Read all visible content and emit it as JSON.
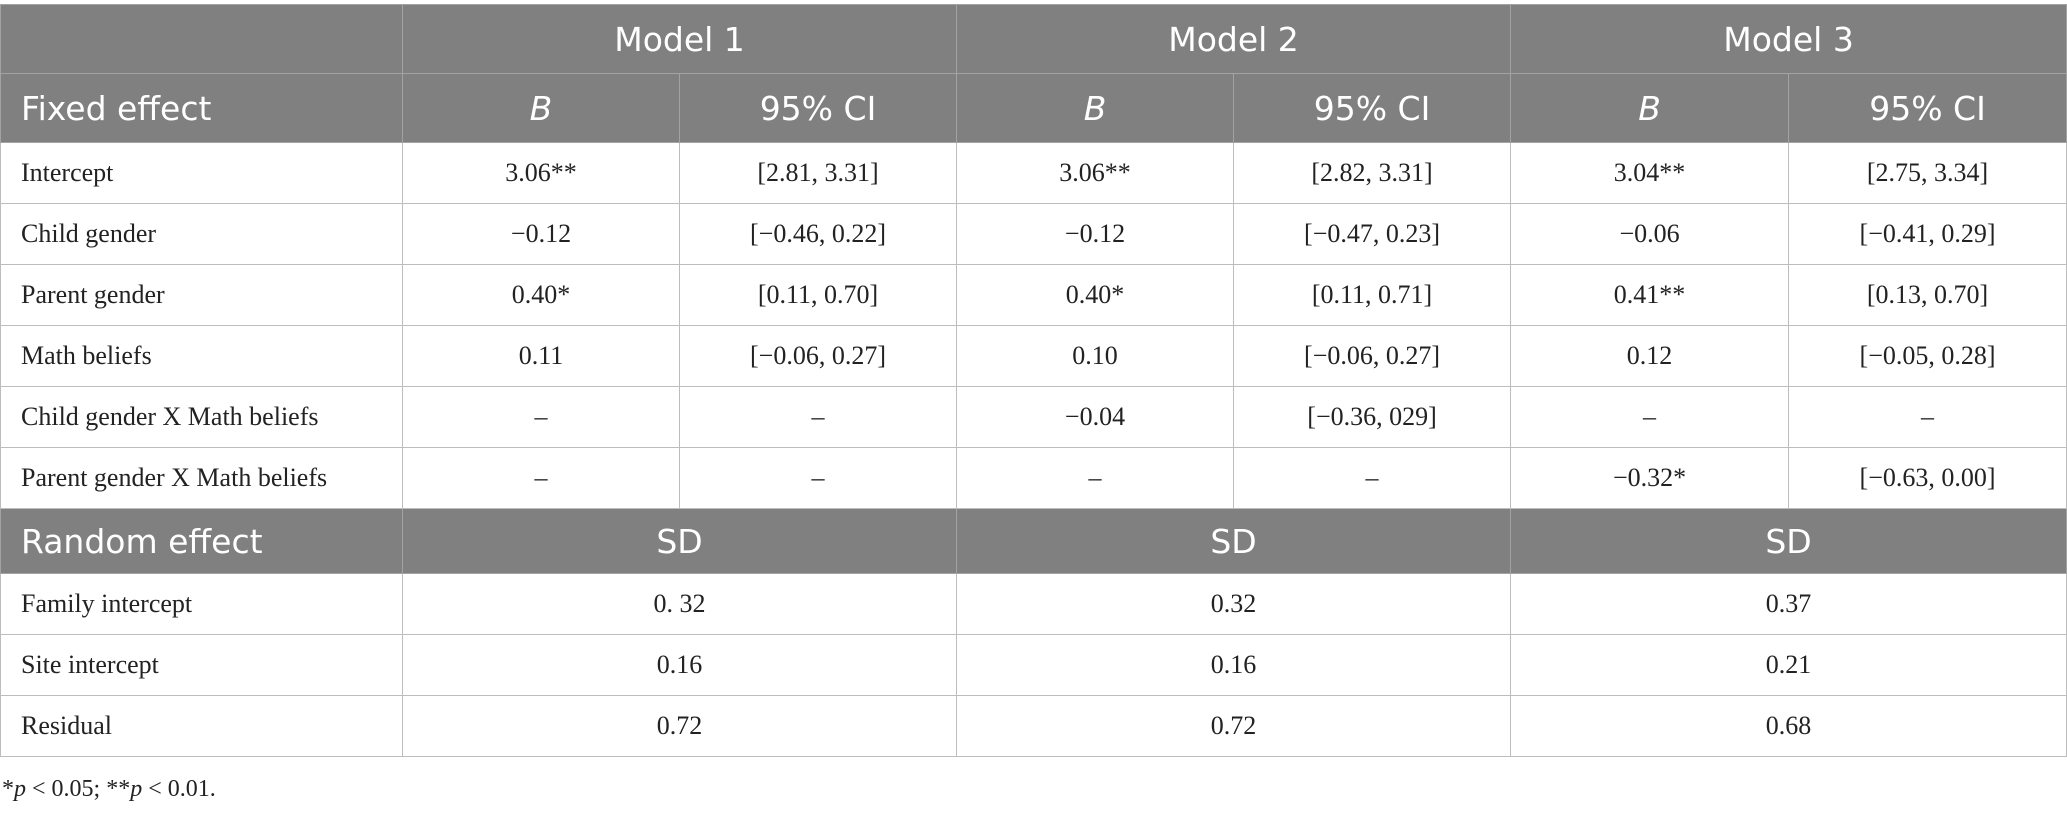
{
  "table": {
    "model_headers": [
      "Model 1",
      "Model 2",
      "Model 3"
    ],
    "fixed_header": "Fixed effect",
    "b_label": "B",
    "ci_label": "95% CI",
    "fixed_rows": [
      {
        "label": "Intercept",
        "m1_b": "3.06**",
        "m1_ci": "[2.81, 3.31]",
        "m2_b": "3.06**",
        "m2_ci": "[2.82, 3.31]",
        "m3_b": "3.04**",
        "m3_ci": "[2.75, 3.34]"
      },
      {
        "label": "Child gender",
        "m1_b": "−0.12",
        "m1_ci": "[−0.46, 0.22]",
        "m2_b": "−0.12",
        "m2_ci": "[−0.47, 0.23]",
        "m3_b": "−0.06",
        "m3_ci": "[−0.41, 0.29]"
      },
      {
        "label": "Parent gender",
        "m1_b": "0.40*",
        "m1_ci": "[0.11, 0.70]",
        "m2_b": "0.40*",
        "m2_ci": "[0.11, 0.71]",
        "m3_b": "0.41**",
        "m3_ci": "[0.13, 0.70]"
      },
      {
        "label": "Math beliefs",
        "m1_b": "0.11",
        "m1_ci": "[−0.06, 0.27]",
        "m2_b": "0.10",
        "m2_ci": "[−0.06, 0.27]",
        "m3_b": "0.12",
        "m3_ci": "[−0.05, 0.28]"
      },
      {
        "label": "Child gender X Math beliefs",
        "m1_b": "–",
        "m1_ci": "–",
        "m2_b": "−0.04",
        "m2_ci": "[−0.36, 029]",
        "m3_b": "–",
        "m3_ci": "–"
      },
      {
        "label": "Parent gender X Math beliefs",
        "m1_b": "–",
        "m1_ci": "–",
        "m2_b": "–",
        "m2_ci": "–",
        "m3_b": "−0.32*",
        "m3_ci": "[−0.63, 0.00]"
      }
    ],
    "random_header": "Random effect",
    "sd_label": "SD",
    "random_rows": [
      {
        "label": "Family intercept",
        "m1": "0. 32",
        "m2": "0.32",
        "m3": "0.37"
      },
      {
        "label": "Site intercept",
        "m1": "0.16",
        "m2": "0.16",
        "m3": "0.21"
      },
      {
        "label": "Residual",
        "m1": "0.72",
        "m2": "0.72",
        "m3": "0.68"
      }
    ]
  },
  "footnote": {
    "star1": "*",
    "p1": "p",
    "text1": " < 0.05; **",
    "p2": "p",
    "text2": " < 0.01."
  }
}
